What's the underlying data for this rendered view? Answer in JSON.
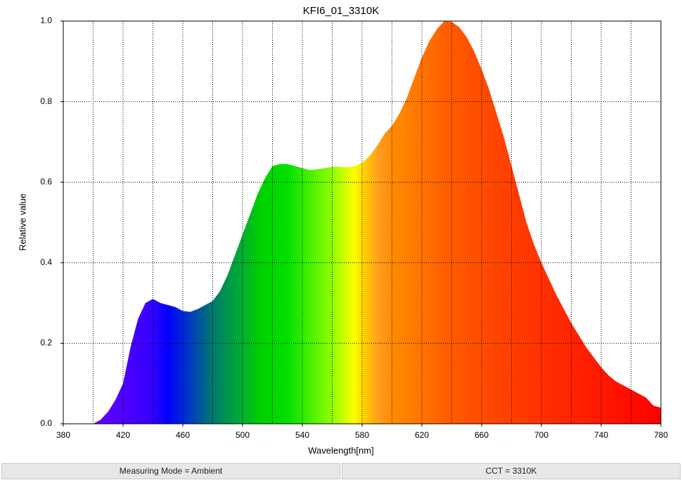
{
  "chart_data": {
    "type": "area",
    "title": "KFI6_01_3310K",
    "x_label": "Wavelength[nm]",
    "y_label": "Relative value",
    "x": [
      400,
      405,
      410,
      415,
      420,
      425,
      430,
      435,
      440,
      445,
      450,
      455,
      460,
      465,
      470,
      475,
      480,
      485,
      490,
      495,
      500,
      505,
      510,
      515,
      520,
      525,
      530,
      535,
      540,
      545,
      550,
      555,
      560,
      565,
      570,
      575,
      580,
      585,
      590,
      595,
      600,
      605,
      610,
      615,
      620,
      625,
      630,
      635,
      640,
      645,
      650,
      655,
      660,
      665,
      670,
      675,
      680,
      685,
      690,
      695,
      700,
      705,
      710,
      715,
      720,
      725,
      730,
      735,
      740,
      745,
      750,
      755,
      760,
      765,
      770,
      775,
      780
    ],
    "values": [
      0,
      0.01,
      0.03,
      0.06,
      0.1,
      0.19,
      0.26,
      0.3,
      0.31,
      0.3,
      0.295,
      0.29,
      0.28,
      0.278,
      0.285,
      0.295,
      0.305,
      0.33,
      0.37,
      0.42,
      0.47,
      0.52,
      0.57,
      0.61,
      0.64,
      0.645,
      0.645,
      0.64,
      0.635,
      0.63,
      0.632,
      0.635,
      0.638,
      0.638,
      0.637,
      0.64,
      0.648,
      0.665,
      0.69,
      0.72,
      0.74,
      0.77,
      0.81,
      0.86,
      0.91,
      0.95,
      0.98,
      1.0,
      0.998,
      0.985,
      0.96,
      0.925,
      0.88,
      0.83,
      0.77,
      0.71,
      0.64,
      0.57,
      0.5,
      0.445,
      0.4,
      0.36,
      0.32,
      0.285,
      0.25,
      0.22,
      0.19,
      0.165,
      0.14,
      0.12,
      0.105,
      0.095,
      0.085,
      0.075,
      0.065,
      0.045,
      0.04
    ],
    "xlim": [
      380,
      780
    ],
    "ylim": [
      0,
      1
    ],
    "xticks": [
      380,
      420,
      460,
      500,
      540,
      580,
      620,
      660,
      700,
      740,
      780
    ],
    "x_grid_lines": [
      400,
      420,
      440,
      460,
      480,
      500,
      520,
      540,
      560,
      580,
      600,
      620,
      640,
      660,
      680,
      700,
      720,
      740,
      760
    ],
    "yticks": [
      {
        "value": 0,
        "label": "0.0"
      },
      0.2,
      0.4,
      0.6,
      0.8,
      {
        "value": 1,
        "label": "1.0"
      }
    ],
    "grid": true,
    "fill_gradient": [
      {
        "x": 400,
        "color": "#6a00ff"
      },
      {
        "x": 440,
        "color": "#3300ff"
      },
      {
        "x": 450,
        "color": "#0000ff"
      },
      {
        "x": 462,
        "color": "#0030d0"
      },
      {
        "x": 480,
        "color": "#007a6a"
      },
      {
        "x": 500,
        "color": "#00b030"
      },
      {
        "x": 512,
        "color": "#00d000"
      },
      {
        "x": 530,
        "color": "#00e000"
      },
      {
        "x": 560,
        "color": "#90ff00"
      },
      {
        "x": 575,
        "color": "#ffff00"
      },
      {
        "x": 582,
        "color": "#ffcc00"
      },
      {
        "x": 592,
        "color": "#ff9a20"
      },
      {
        "x": 600,
        "color": "#ff8c00"
      },
      {
        "x": 640,
        "color": "#ff5a00"
      },
      {
        "x": 700,
        "color": "#ff3000"
      },
      {
        "x": 780,
        "color": "#ff0000"
      }
    ]
  },
  "status_bar": [
    "Measuring Mode = Ambient",
    "CCT = 3310K"
  ]
}
